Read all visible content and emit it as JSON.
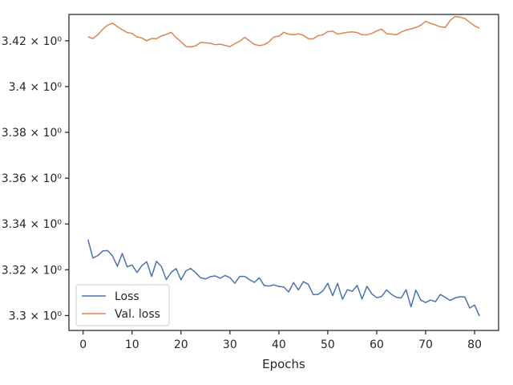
{
  "chart_data": {
    "type": "line",
    "title": "",
    "xlabel": "Epochs",
    "ylabel": "",
    "xlim": [
      -2.9,
      84.9
    ],
    "ylim": [
      3.2935,
      3.4315
    ],
    "xticks": [
      0,
      10,
      20,
      30,
      40,
      50,
      60,
      70,
      80
    ],
    "xtick_labels": [
      "0",
      "10",
      "20",
      "30",
      "40",
      "50",
      "60",
      "70",
      "80"
    ],
    "yticks": [
      3.3,
      3.32,
      3.34,
      3.36,
      3.38,
      3.4,
      3.42
    ],
    "ytick_labels": [
      "3.3 × 10⁰",
      "3.32 × 10⁰",
      "3.34 × 10⁰",
      "3.36 × 10⁰",
      "3.38 × 10⁰",
      "3.4 × 10⁰",
      "3.42 × 10⁰"
    ],
    "y_scale": "log",
    "grid": false,
    "legend_position": "lower-left",
    "x": [
      1,
      2,
      3,
      4,
      5,
      6,
      7,
      8,
      9,
      10,
      11,
      12,
      13,
      14,
      15,
      16,
      17,
      18,
      19,
      20,
      21,
      22,
      23,
      24,
      25,
      26,
      27,
      28,
      29,
      30,
      31,
      32,
      33,
      34,
      35,
      36,
      37,
      38,
      39,
      40,
      41,
      42,
      43,
      44,
      45,
      46,
      47,
      48,
      49,
      50,
      51,
      52,
      53,
      54,
      55,
      56,
      57,
      58,
      59,
      60,
      61,
      62,
      63,
      64,
      65,
      66,
      67,
      68,
      69,
      70,
      71,
      72,
      73,
      74,
      75,
      76,
      77,
      78,
      79,
      80,
      81
    ],
    "series": [
      {
        "name": "Loss",
        "color": "#4c72b0",
        "values": [
          3.3332,
          3.3251,
          3.3262,
          3.3282,
          3.3284,
          3.3261,
          3.3215,
          3.3271,
          3.3213,
          3.3221,
          3.3188,
          3.3218,
          3.3235,
          3.3171,
          3.3237,
          3.3214,
          3.3157,
          3.3189,
          3.3205,
          3.3156,
          3.3195,
          3.3206,
          3.3187,
          3.3165,
          3.316,
          3.317,
          3.3173,
          3.3163,
          3.3175,
          3.3166,
          3.3141,
          3.3171,
          3.3171,
          3.3157,
          3.3145,
          3.3165,
          3.3131,
          3.3129,
          3.3134,
          3.3127,
          3.3125,
          3.3103,
          3.3144,
          3.3112,
          3.3148,
          3.3137,
          3.3092,
          3.3092,
          3.3108,
          3.3141,
          3.3087,
          3.3141,
          3.3071,
          3.3113,
          3.3106,
          3.3132,
          3.3072,
          3.3128,
          3.3095,
          3.3078,
          3.3083,
          3.3112,
          3.3093,
          3.308,
          3.3077,
          3.3113,
          3.3038,
          3.3111,
          3.3068,
          3.3057,
          3.3068,
          3.3061,
          3.3092,
          3.308,
          3.3066,
          3.3077,
          3.3082,
          3.3081,
          3.3033,
          3.3046,
          3.2998
        ]
      },
      {
        "name": "Val. loss",
        "color": "#dd8452",
        "values": [
          3.4217,
          3.421,
          3.4226,
          3.425,
          3.4268,
          3.4277,
          3.4262,
          3.4248,
          3.4236,
          3.4232,
          3.4217,
          3.4212,
          3.42,
          3.421,
          3.4209,
          3.4221,
          3.4228,
          3.4237,
          3.4214,
          3.4196,
          3.4175,
          3.4173,
          3.4178,
          3.4193,
          3.4191,
          3.4189,
          3.4183,
          3.4185,
          3.418,
          3.4174,
          3.4187,
          3.4198,
          3.4215,
          3.42,
          3.4184,
          3.4179,
          3.4183,
          3.4196,
          3.4217,
          3.422,
          3.4237,
          3.4229,
          3.4226,
          3.423,
          3.4224,
          3.4209,
          3.4208,
          3.4222,
          3.4226,
          3.424,
          3.4242,
          3.4229,
          3.4233,
          3.4237,
          3.4239,
          3.4236,
          3.4226,
          3.4226,
          3.4232,
          3.4243,
          3.4251,
          3.4231,
          3.4229,
          3.4226,
          3.4238,
          3.4247,
          3.4252,
          3.4258,
          3.4268,
          3.4285,
          3.4276,
          3.4269,
          3.4261,
          3.4258,
          3.4289,
          3.4306,
          3.4303,
          3.4297,
          3.4281,
          3.4265,
          3.4255
        ]
      }
    ]
  }
}
